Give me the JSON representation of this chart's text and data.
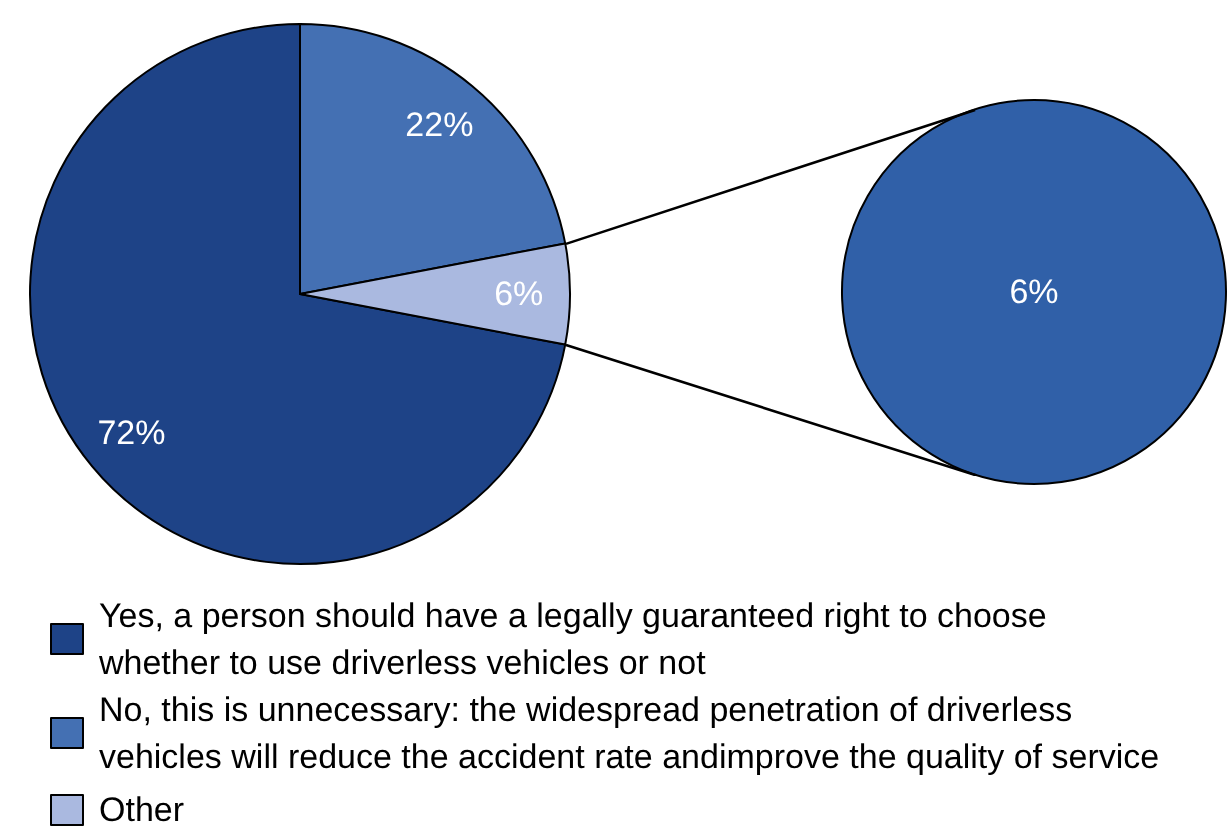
{
  "chart_data": [
    {
      "type": "pie",
      "categories": [
        "Yes, a person should have a legally guaranteed right to choose whether to use driverless vehicles or not",
        "No, this is unnecessary: the widespread penetration of driverless vehicles will reduce the accident rate andimprove the quality of service",
        "Other"
      ],
      "values": [
        72,
        22,
        6
      ],
      "colors": [
        "#1e4387",
        "#4470b3",
        "#aab9e0"
      ],
      "value_labels": [
        "72%",
        "22%",
        "6%"
      ],
      "legend": "bottom"
    },
    {
      "type": "pie",
      "categories": [
        null
      ],
      "values": [
        6
      ],
      "colors": [
        "#3060a8"
      ],
      "value_labels": [
        "6%"
      ]
    }
  ]
}
